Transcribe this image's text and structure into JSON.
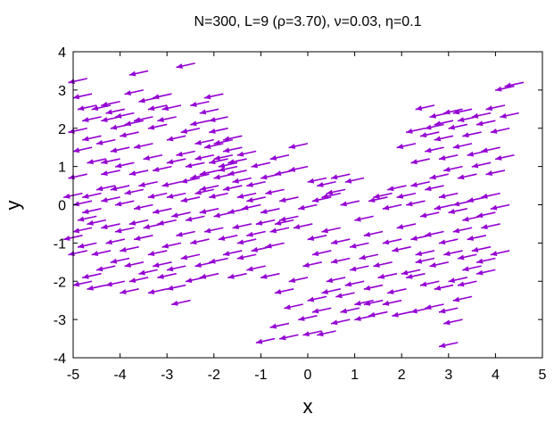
{
  "chart_data": {
    "type": "scatter",
    "title": "N=300, L=9 (ρ=3.70), ν=0.03, η=0.1",
    "xlabel": "x",
    "ylabel": "y",
    "xlim": [
      -5,
      5
    ],
    "ylim": [
      -4,
      4
    ],
    "xticks": [
      "-5",
      "-4",
      "-3",
      "-2",
      "-1",
      "0",
      "1",
      "2",
      "3",
      "4",
      "5"
    ],
    "yticks": [
      "-4",
      "-3",
      "-2",
      "-1",
      "0",
      "1",
      "2",
      "3",
      "4"
    ],
    "grid": false,
    "marker": "arrow",
    "arrow_direction_deg": 195,
    "arrow_length": 0.42,
    "color": "#9400d3",
    "points": [
      [
        -4.7,
        3.3
      ],
      [
        -4.6,
        2.9
      ],
      [
        -4.5,
        2.6
      ],
      [
        -4.4,
        2.3
      ],
      [
        -4.2,
        2.6
      ],
      [
        -4.0,
        2.7
      ],
      [
        -3.9,
        2.5
      ],
      [
        -3.7,
        2.4
      ],
      [
        -3.4,
        3.5
      ],
      [
        -3.5,
        3.0
      ],
      [
        -3.2,
        2.8
      ],
      [
        -3.0,
        2.6
      ],
      [
        -3.3,
        2.3
      ],
      [
        -3.5,
        2.2
      ],
      [
        -3.8,
        2.1
      ],
      [
        -4.0,
        2.3
      ],
      [
        -2.9,
        2.9
      ],
      [
        -2.7,
        2.6
      ],
      [
        -2.4,
        3.7
      ],
      [
        -2.1,
        2.7
      ],
      [
        -1.8,
        2.9
      ],
      [
        -1.9,
        2.5
      ],
      [
        -2.1,
        2.2
      ],
      [
        -2.3,
        2.0
      ],
      [
        -1.7,
        2.3
      ],
      [
        -1.7,
        2.0
      ],
      [
        -3.0,
        2.1
      ],
      [
        -2.8,
        2.3
      ],
      [
        -4.7,
        2.0
      ],
      [
        -4.4,
        1.8
      ],
      [
        -4.1,
        1.7
      ],
      [
        -3.8,
        1.5
      ],
      [
        -4.6,
        1.5
      ],
      [
        -4.3,
        1.2
      ],
      [
        -4.0,
        0.9
      ],
      [
        -3.7,
        1.1
      ],
      [
        -3.4,
        0.9
      ],
      [
        -3.1,
        1.3
      ],
      [
        -2.9,
        1.0
      ],
      [
        -2.6,
        1.2
      ],
      [
        -2.4,
        1.4
      ],
      [
        -2.2,
        1.1
      ],
      [
        -2.0,
        1.3
      ],
      [
        -1.8,
        1.6
      ],
      [
        -1.6,
        1.7
      ],
      [
        -1.4,
        1.5
      ],
      [
        -1.7,
        1.2
      ],
      [
        -1.5,
        1.0
      ],
      [
        -1.3,
        1.2
      ],
      [
        -1.6,
        0.8
      ],
      [
        -1.2,
        0.7
      ],
      [
        -1.4,
        1.8
      ],
      [
        -1.9,
        0.9
      ],
      [
        -2.3,
        0.7
      ],
      [
        -2.7,
        0.6
      ],
      [
        -3.2,
        0.6
      ],
      [
        -3.5,
        0.4
      ],
      [
        -3.8,
        0.5
      ],
      [
        -4.1,
        0.5
      ],
      [
        -4.4,
        0.3
      ],
      [
        -4.6,
        0.1
      ],
      [
        -4.7,
        0.8
      ],
      [
        -4.4,
        -0.1
      ],
      [
        -4.0,
        0.2
      ],
      [
        -3.7,
        0.1
      ],
      [
        -3.3,
        0.0
      ],
      [
        -2.9,
        -0.1
      ],
      [
        -2.6,
        0.3
      ],
      [
        -2.3,
        0.2
      ],
      [
        -2.0,
        0.4
      ],
      [
        -1.7,
        0.3
      ],
      [
        -1.4,
        0.5
      ],
      [
        -1.1,
        0.3
      ],
      [
        -0.9,
        0.6
      ],
      [
        -0.6,
        0.8
      ],
      [
        -0.3,
        0.9
      ],
      [
        -0.8,
        1.1
      ],
      [
        -0.5,
        0.4
      ],
      [
        -0.2,
        0.2
      ],
      [
        0.0,
        1.6
      ],
      [
        -1.0,
        0.0
      ],
      [
        -1.3,
        -0.1
      ],
      [
        -1.6,
        -0.2
      ],
      [
        -1.9,
        -0.1
      ],
      [
        -2.2,
        -0.3
      ],
      [
        -2.5,
        -0.2
      ],
      [
        -2.8,
        -0.4
      ],
      [
        -3.1,
        -0.5
      ],
      [
        -3.4,
        -0.4
      ],
      [
        -3.7,
        -0.6
      ],
      [
        -4.0,
        -0.5
      ],
      [
        -4.3,
        -0.4
      ],
      [
        -4.6,
        -0.6
      ],
      [
        -4.8,
        -0.8
      ],
      [
        -4.5,
        -1.0
      ],
      [
        -4.2,
        -1.2
      ],
      [
        -3.9,
        -0.9
      ],
      [
        -3.6,
        -1.1
      ],
      [
        -3.3,
        -0.8
      ],
      [
        -3.0,
        -1.2
      ],
      [
        -2.7,
        -1.0
      ],
      [
        -2.4,
        -0.7
      ],
      [
        -2.1,
        -0.9
      ],
      [
        -1.8,
        -0.6
      ],
      [
        -1.5,
        -0.8
      ],
      [
        -1.2,
        -0.5
      ],
      [
        -0.9,
        -0.7
      ],
      [
        -0.7,
        -0.4
      ],
      [
        -0.4,
        -0.6
      ],
      [
        -0.2,
        -0.3
      ],
      [
        -0.5,
        -1.0
      ],
      [
        -0.8,
        -1.1
      ],
      [
        -1.1,
        -1.3
      ],
      [
        -1.4,
        -1.2
      ],
      [
        -1.7,
        -1.4
      ],
      [
        -2.0,
        -1.5
      ],
      [
        -2.3,
        -1.3
      ],
      [
        -2.6,
        -1.6
      ],
      [
        -2.9,
        -1.5
      ],
      [
        -3.2,
        -1.7
      ],
      [
        -3.5,
        -1.5
      ],
      [
        -3.8,
        -1.4
      ],
      [
        -4.1,
        -1.6
      ],
      [
        -4.4,
        -1.8
      ],
      [
        -4.7,
        -1.2
      ],
      [
        -4.6,
        -2.0
      ],
      [
        -4.3,
        -2.1
      ],
      [
        -3.9,
        -2.0
      ],
      [
        -3.4,
        -1.9
      ],
      [
        -3.0,
        -2.2
      ],
      [
        -2.6,
        -2.1
      ],
      [
        -2.2,
        -1.9
      ],
      [
        -1.9,
        -1.8
      ],
      [
        -2.5,
        -2.5
      ],
      [
        -0.6,
        -1.8
      ],
      [
        -0.3,
        -2.2
      ],
      [
        0.0,
        -1.9
      ],
      [
        -0.1,
        -2.6
      ],
      [
        0.2,
        -2.9
      ],
      [
        -0.4,
        -3.1
      ],
      [
        -0.7,
        -3.5
      ],
      [
        -0.2,
        -3.4
      ],
      [
        0.3,
        -3.3
      ],
      [
        0.6,
        -3.3
      ],
      [
        0.9,
        -3.0
      ],
      [
        1.1,
        -2.7
      ],
      [
        1.4,
        -2.9
      ],
      [
        1.7,
        -2.8
      ],
      [
        1.4,
        -2.5
      ],
      [
        1.0,
        -2.3
      ],
      [
        0.7,
        -2.2
      ],
      [
        0.4,
        -2.4
      ],
      [
        0.8,
        -1.9
      ],
      [
        1.2,
        -2.0
      ],
      [
        1.6,
        -2.1
      ],
      [
        1.9,
        -1.8
      ],
      [
        2.1,
        -2.2
      ],
      [
        2.4,
        -1.7
      ],
      [
        1.8,
        -1.5
      ],
      [
        1.3,
        -1.6
      ],
      [
        0.9,
        -1.4
      ],
      [
        0.5,
        -1.2
      ],
      [
        0.9,
        -0.9
      ],
      [
        1.3,
        -1.0
      ],
      [
        1.6,
        -0.7
      ],
      [
        2.0,
        -0.9
      ],
      [
        2.3,
        -0.5
      ],
      [
        2.6,
        -0.8
      ],
      [
        2.9,
        -0.7
      ],
      [
        3.2,
        -0.9
      ],
      [
        3.5,
        -0.6
      ],
      [
        3.8,
        -0.8
      ],
      [
        4.1,
        -0.5
      ],
      [
        3.9,
        -1.1
      ],
      [
        3.6,
        -1.3
      ],
      [
        3.3,
        -1.2
      ],
      [
        3.0,
        -1.5
      ],
      [
        2.7,
        -1.4
      ],
      [
        2.5,
        -1.8
      ],
      [
        2.8,
        -2.0
      ],
      [
        3.1,
        -2.1
      ],
      [
        3.4,
        -1.9
      ],
      [
        3.7,
        -1.6
      ],
      [
        4.0,
        -1.4
      ],
      [
        4.3,
        -1.2
      ],
      [
        3.5,
        -2.4
      ],
      [
        3.2,
        -2.7
      ],
      [
        2.9,
        -2.6
      ],
      [
        2.6,
        -2.7
      ],
      [
        3.3,
        -3.0
      ],
      [
        2.0,
        -2.5
      ],
      [
        2.2,
        -2.8
      ],
      [
        3.2,
        -3.6
      ],
      [
        1.1,
        0.1
      ],
      [
        1.4,
        -0.3
      ],
      [
        1.7,
        0.2
      ],
      [
        2.0,
        0.0
      ],
      [
        0.8,
        0.4
      ],
      [
        0.5,
        0.2
      ],
      [
        0.2,
        0.0
      ],
      [
        0.6,
        0.6
      ],
      [
        0.9,
        0.8
      ],
      [
        1.2,
        0.7
      ],
      [
        0.4,
        0.7
      ],
      [
        0.7,
        0.3
      ],
      [
        1.8,
        0.3
      ],
      [
        2.1,
        0.5
      ],
      [
        2.3,
        0.3
      ],
      [
        2.6,
        0.6
      ],
      [
        2.9,
        0.5
      ],
      [
        3.2,
        0.3
      ],
      [
        3.5,
        0.1
      ],
      [
        3.8,
        0.2
      ],
      [
        4.1,
        0.3
      ],
      [
        4.3,
        0.0
      ],
      [
        4.0,
        -0.2
      ],
      [
        3.7,
        -0.3
      ],
      [
        3.4,
        -0.1
      ],
      [
        3.1,
        0.0
      ],
      [
        2.8,
        -0.2
      ],
      [
        2.5,
        0.1
      ],
      [
        3.0,
        0.8
      ],
      [
        3.3,
        1.0
      ],
      [
        3.6,
        0.8
      ],
      [
        3.9,
        1.1
      ],
      [
        4.2,
        0.9
      ],
      [
        4.4,
        1.3
      ],
      [
        4.1,
        1.5
      ],
      [
        3.8,
        1.4
      ],
      [
        3.5,
        1.6
      ],
      [
        3.2,
        1.3
      ],
      [
        2.9,
        1.5
      ],
      [
        2.6,
        1.2
      ],
      [
        2.8,
        1.9
      ],
      [
        3.1,
        1.8
      ],
      [
        3.4,
        2.1
      ],
      [
        3.7,
        1.9
      ],
      [
        4.0,
        2.2
      ],
      [
        4.3,
        2.0
      ],
      [
        4.5,
        2.4
      ],
      [
        4.2,
        2.6
      ],
      [
        3.9,
        2.4
      ],
      [
        3.6,
        2.3
      ],
      [
        3.3,
        2.5
      ],
      [
        3.0,
        2.4
      ],
      [
        2.7,
        2.6
      ],
      [
        2.5,
        2.0
      ],
      [
        2.3,
        1.6
      ],
      [
        3.1,
        2.2
      ],
      [
        3.5,
        2.5
      ],
      [
        4.4,
        3.1
      ],
      [
        4.6,
        3.2
      ],
      [
        2.9,
        2.1
      ],
      [
        -1.6,
        1.3
      ],
      [
        -1.5,
        1.1
      ],
      [
        -1.3,
        0.9
      ],
      [
        -1.9,
        0.5
      ],
      [
        -2.1,
        0.8
      ],
      [
        -0.9,
        0.2
      ],
      [
        -0.6,
        -0.1
      ],
      [
        -0.3,
        -0.4
      ],
      [
        0.1,
        -0.5
      ],
      [
        0.4,
        -0.8
      ],
      [
        0.7,
        -0.6
      ],
      [
        -4.8,
        0.3
      ],
      [
        -4.5,
        -0.3
      ],
      [
        -3.0,
        0.3
      ],
      [
        -3.6,
        1.9
      ],
      [
        -2.6,
        1.8
      ],
      [
        -1.1,
        -0.9
      ],
      [
        0.3,
        -1.5
      ],
      [
        1.5,
        -1.3
      ],
      [
        2.2,
        -1.1
      ],
      [
        2.7,
        -1.2
      ],
      [
        3.6,
        -2.0
      ],
      [
        4.0,
        -1.7
      ],
      [
        0.5,
        -2.7
      ],
      [
        1.6,
        -2.5
      ],
      [
        -0.9,
        -1.6
      ],
      [
        -1.3,
        -1.8
      ],
      [
        -2.8,
        -1.8
      ],
      [
        -3.6,
        -2.2
      ],
      [
        -4.0,
        1.2
      ],
      [
        -3.3,
        1.6
      ],
      [
        -2.0,
        1.7
      ],
      [
        -1.1,
        1.4
      ],
      [
        -0.4,
        1.3
      ],
      [
        0.0,
        1.0
      ]
    ]
  }
}
